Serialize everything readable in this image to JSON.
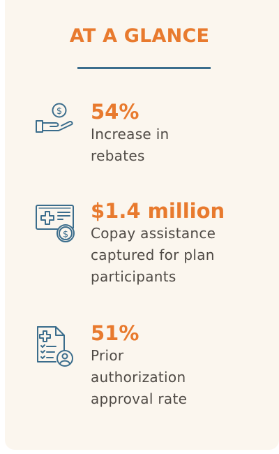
{
  "header": {
    "title": "AT A GLANCE"
  },
  "stats": [
    {
      "value": "54%",
      "description_lines": [
        "Increase in",
        "rebates"
      ],
      "icon": "hand-coin-icon"
    },
    {
      "value": "$1.4 million",
      "description_lines": [
        "Copay assistance",
        "captured for plan",
        "participants"
      ],
      "icon": "medical-card-coin-icon"
    },
    {
      "value": "51%",
      "description_lines": [
        "Prior",
        "authorization",
        "approval rate"
      ],
      "icon": "medical-clipboard-person-icon"
    }
  ],
  "colors": {
    "accent": "#e87a2e",
    "icon": "#3b6d8c",
    "text": "#4f4a45",
    "background": "#fbf6ee"
  }
}
